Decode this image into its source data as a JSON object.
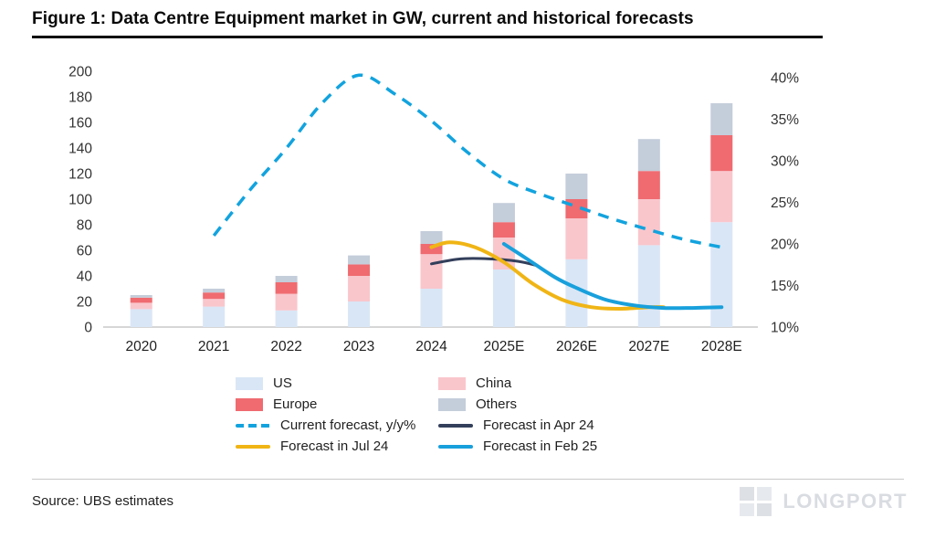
{
  "title": "Figure 1: Data Centre Equipment market in GW, current and historical forecasts",
  "source": "Source: UBS estimates",
  "watermark": "LONGPORT",
  "colors": {
    "us": "#d9e6f6",
    "china": "#f9c6cc",
    "europe": "#ef6b70",
    "others": "#c4cdda",
    "current_forecast": "#12a3de",
    "forecast_apr24": "#333f5b",
    "forecast_jul24": "#f0b515",
    "forecast_feb25": "#18a0dc",
    "axis_text": "#333333",
    "baseline": "#c8c8c8"
  },
  "chart_data": {
    "type": "bar",
    "title": "Data Centre Equipment market in GW, current and historical forecasts",
    "categories": [
      "2020",
      "2021",
      "2022",
      "2023",
      "2024",
      "2025E",
      "2026E",
      "2027E",
      "2028E"
    ],
    "bar_series": [
      {
        "name": "US",
        "color": "#d9e6f6",
        "values": [
          14,
          16,
          13,
          20,
          30,
          45,
          53,
          64,
          82
        ]
      },
      {
        "name": "China",
        "color": "#f9c6cc",
        "values": [
          5,
          6,
          13,
          20,
          27,
          25,
          32,
          36,
          40
        ]
      },
      {
        "name": "Europe",
        "color": "#ef6b70",
        "values": [
          4,
          5,
          9,
          9,
          8,
          12,
          15,
          22,
          28
        ]
      },
      {
        "name": "Others",
        "color": "#c4cdda",
        "values": [
          2,
          3,
          5,
          7,
          10,
          15,
          20,
          25,
          25
        ]
      }
    ],
    "bar_totals": [
      25,
      30,
      40,
      56,
      75,
      97,
      120,
      147,
      175
    ],
    "line_series": [
      {
        "name": "Current forecast, y/y%",
        "color": "#12a3de",
        "dashed": true,
        "width": 3.5,
        "x": [
          1,
          1.5,
          2,
          2.5,
          3,
          3.5,
          4,
          4.5,
          5,
          5.5,
          6,
          6.5,
          7,
          7.5,
          8
        ],
        "y": [
          21,
          26.5,
          31.5,
          37,
          40.3,
          38,
          34.8,
          31,
          27.8,
          26,
          24.5,
          23,
          21.7,
          20.5,
          19.6
        ]
      },
      {
        "name": "Forecast in Apr 24",
        "color": "#333f5b",
        "dashed": false,
        "width": 3,
        "x": [
          4,
          4.4,
          4.8,
          5.2,
          5.45
        ],
        "y": [
          17.6,
          18.2,
          18.2,
          17.9,
          17.4
        ]
      },
      {
        "name": "Forecast in Jul 24",
        "color": "#f0b515",
        "dashed": false,
        "width": 4,
        "x": [
          4,
          4.25,
          4.6,
          5,
          5.4,
          5.8,
          6.2,
          6.6,
          7,
          7.2
        ],
        "y": [
          19.6,
          20.2,
          19.6,
          17.8,
          15.2,
          13.3,
          12.4,
          12.2,
          12.4,
          12.4
        ]
      },
      {
        "name": "Forecast in Feb 25",
        "color": "#18a0dc",
        "dashed": false,
        "width": 4,
        "x": [
          5,
          5.3,
          5.7,
          6,
          6.4,
          6.8,
          7.2,
          7.6,
          8
        ],
        "y": [
          20,
          18.3,
          16,
          14.7,
          13.3,
          12.6,
          12.3,
          12.3,
          12.4
        ]
      }
    ],
    "left_axis": {
      "min": 0,
      "max": 200,
      "step": 20,
      "ticks": [
        "0",
        "20",
        "40",
        "60",
        "80",
        "100",
        "120",
        "140",
        "160",
        "180",
        "200"
      ]
    },
    "right_axis": {
      "min": 10,
      "max": 40,
      "step": 5,
      "suffix": "%",
      "ticks": [
        "10%",
        "15%",
        "20%",
        "25%",
        "30%",
        "35%",
        "40%"
      ]
    },
    "grid": false,
    "legend_position": "bottom",
    "legend": [
      {
        "label": "US",
        "swatch": "bar",
        "color": "#d9e6f6"
      },
      {
        "label": "China",
        "swatch": "bar",
        "color": "#f9c6cc"
      },
      {
        "label": "Europe",
        "swatch": "bar",
        "color": "#ef6b70"
      },
      {
        "label": "Others",
        "swatch": "bar",
        "color": "#c4cdda"
      },
      {
        "label": "Current forecast, y/y%",
        "swatch": "dashed-line",
        "color": "#12a3de"
      },
      {
        "label": "Forecast in Apr 24",
        "swatch": "line",
        "color": "#333f5b"
      },
      {
        "label": "Forecast in Jul 24",
        "swatch": "line",
        "color": "#f0b515"
      },
      {
        "label": "Forecast in Feb 25",
        "swatch": "line",
        "color": "#18a0dc"
      }
    ]
  }
}
